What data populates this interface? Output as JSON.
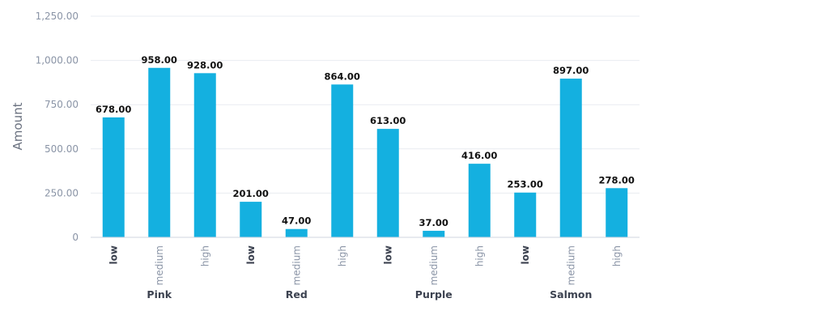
{
  "chart_data": {
    "type": "bar",
    "ylabel": "Amount",
    "ylim": [
      0,
      1250
    ],
    "y_ticks": [
      "0",
      "250.00",
      "500.00",
      "750.00",
      "1,000.00",
      "1,250.00"
    ],
    "grid": true,
    "bar_color": "#14b0e0",
    "groups": [
      {
        "name": "Pink",
        "categories": [
          "low",
          "medium",
          "high"
        ],
        "values": [
          678,
          958,
          928
        ],
        "value_labels": [
          "678.00",
          "958.00",
          "928.00"
        ]
      },
      {
        "name": "Red",
        "categories": [
          "low",
          "medium",
          "high"
        ],
        "values": [
          201,
          47,
          864
        ],
        "value_labels": [
          "201.00",
          "47.00",
          "864.00"
        ]
      },
      {
        "name": "Purple",
        "categories": [
          "low",
          "medium",
          "high"
        ],
        "values": [
          613,
          37,
          416
        ],
        "value_labels": [
          "613.00",
          "37.00",
          "416.00"
        ]
      },
      {
        "name": "Salmon",
        "categories": [
          "low",
          "medium",
          "high"
        ],
        "values": [
          253,
          897,
          278
        ],
        "value_labels": [
          "253.00",
          "897.00",
          "278.00"
        ]
      }
    ]
  }
}
